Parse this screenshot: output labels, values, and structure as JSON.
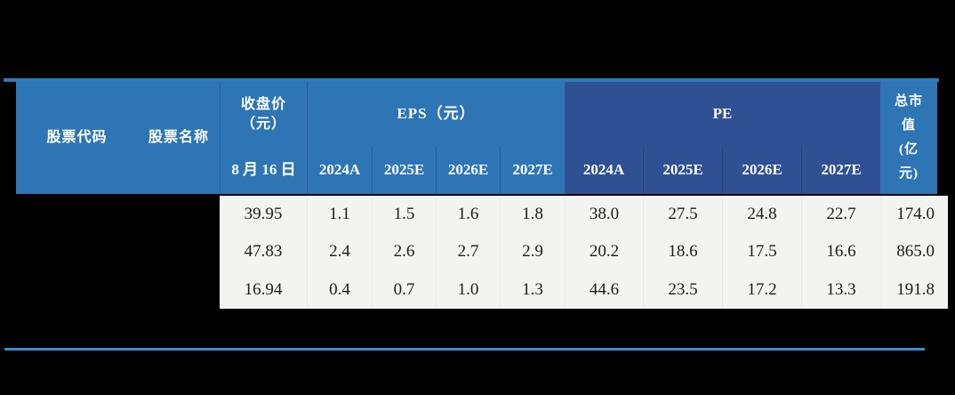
{
  "colors": {
    "header_blue": "#2E75B6",
    "header_dark_blue": "#2F5193",
    "body_gray": "#F3F3F2",
    "top_rule": "#307AB8",
    "bottom_rule": "#3C8CCB",
    "header_text": "#FFFFFF",
    "body_text": "#1C1C1C",
    "page_background": "#000000"
  },
  "table": {
    "header": {
      "stock_code": "股票代码",
      "stock_name": "股票名称",
      "close_price": {
        "line1": "收盘价",
        "line2": "（元）",
        "sub": "8 月 16 日"
      },
      "eps_group": "EPS（元）",
      "pe_group": "PE",
      "eps_years": [
        "2024A",
        "2025E",
        "2026E",
        "2027E"
      ],
      "pe_years": [
        "2024A",
        "2025E",
        "2026E",
        "2027E"
      ],
      "market_cap": {
        "line1": "总市",
        "line2": "值",
        "line3": "(亿",
        "line4": "元)"
      }
    },
    "rows": [
      {
        "close": "39.95",
        "eps": [
          "1.1",
          "1.5",
          "1.6",
          "1.8"
        ],
        "pe": [
          "38.0",
          "27.5",
          "24.8",
          "22.7"
        ],
        "cap": "174.0"
      },
      {
        "close": "47.83",
        "eps": [
          "2.4",
          "2.6",
          "2.7",
          "2.9"
        ],
        "pe": [
          "20.2",
          "18.6",
          "17.5",
          "16.6"
        ],
        "cap": "865.0"
      },
      {
        "close": "16.94",
        "eps": [
          "0.4",
          "0.7",
          "1.0",
          "1.3"
        ],
        "pe": [
          "44.6",
          "23.5",
          "17.2",
          "13.3"
        ],
        "cap": "191.8"
      }
    ]
  }
}
